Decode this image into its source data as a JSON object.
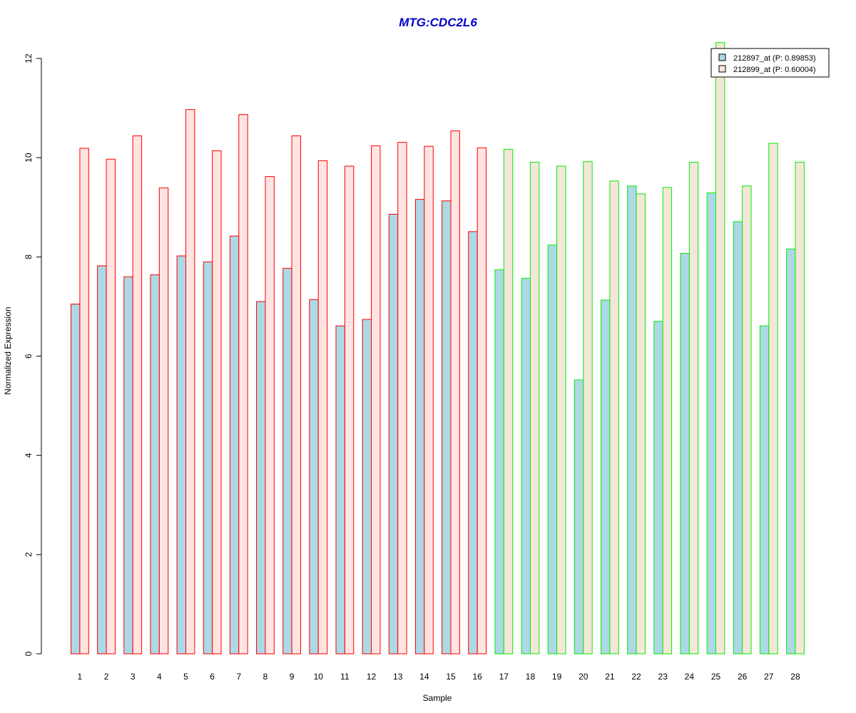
{
  "colors": {
    "title": "#0000cc",
    "series1_fill": "#add8e6",
    "series2_fill_group1": "#ffe4e1",
    "series2_fill_group2": "#f5e6da",
    "group1_border": "#ff0000",
    "group2_border": "#00ee00",
    "axis": "#000000"
  },
  "chart_data": {
    "type": "bar",
    "title": "MTG:CDC2L6",
    "xlabel": "Sample",
    "ylabel": "Normalized Expression",
    "ylim": [
      0,
      12
    ],
    "yticks": [
      "0",
      "2",
      "4",
      "6",
      "8",
      "10",
      "12"
    ],
    "categories": [
      "1",
      "2",
      "3",
      "4",
      "5",
      "6",
      "7",
      "8",
      "9",
      "10",
      "11",
      "12",
      "13",
      "14",
      "15",
      "16",
      "17",
      "18",
      "19",
      "20",
      "21",
      "22",
      "23",
      "24",
      "25",
      "26",
      "27",
      "28"
    ],
    "groups": [
      {
        "from": 1,
        "to": 16,
        "border_color": "#ff0000"
      },
      {
        "from": 17,
        "to": 28,
        "border_color": "#00ee00"
      }
    ],
    "series": [
      {
        "name": "212897_at (P: 0.89853)",
        "values": [
          7.05,
          7.82,
          7.6,
          7.64,
          8.02,
          7.9,
          8.42,
          7.1,
          7.77,
          7.14,
          6.61,
          6.74,
          8.86,
          9.16,
          9.13,
          8.51,
          7.74,
          7.57,
          8.24,
          5.52,
          7.13,
          9.43,
          6.7,
          8.07,
          9.29,
          8.71,
          6.61,
          8.16
        ]
      },
      {
        "name": "212899_at (P: 0.60004)",
        "values": [
          10.19,
          9.97,
          10.44,
          9.39,
          10.97,
          10.14,
          10.87,
          9.62,
          10.44,
          9.94,
          9.83,
          10.24,
          10.31,
          10.23,
          10.54,
          10.2,
          10.17,
          9.91,
          9.83,
          9.92,
          9.53,
          9.27,
          9.4,
          9.91,
          12.32,
          9.43,
          10.29,
          9.91
        ]
      }
    ],
    "legend": "top-right",
    "grid": false
  }
}
